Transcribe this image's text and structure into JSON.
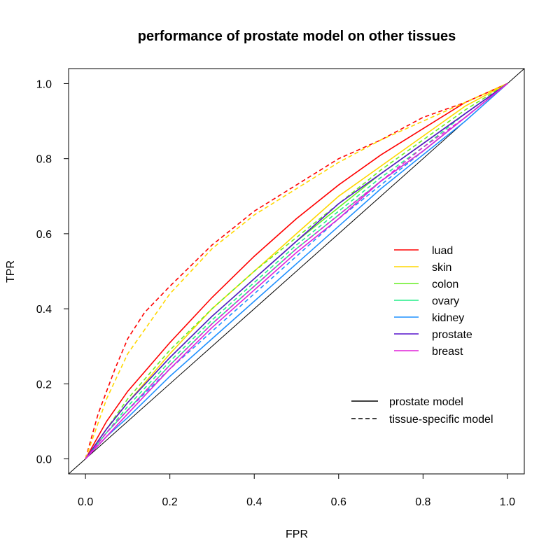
{
  "chart_data": {
    "type": "line",
    "title": "performance of prostate model on other tissues",
    "xlabel": "FPR",
    "ylabel": "TPR",
    "xlim": [
      -0.04,
      1.04
    ],
    "ylim": [
      -0.04,
      1.04
    ],
    "xticks": [
      "0.0",
      "0.2",
      "0.4",
      "0.6",
      "0.8",
      "1.0"
    ],
    "yticks": [
      "0.0",
      "0.2",
      "0.4",
      "0.6",
      "0.8",
      "1.0"
    ],
    "grid": false,
    "diagonal_reference": true,
    "legend_tissues": {
      "position": "right",
      "entries": [
        {
          "name": "luad",
          "color": "#ff0000"
        },
        {
          "name": "skin",
          "color": "#ffd700"
        },
        {
          "name": "colon",
          "color": "#66ee22"
        },
        {
          "name": "ovary",
          "color": "#22ee88"
        },
        {
          "name": "kidney",
          "color": "#1e90ff"
        },
        {
          "name": "prostate",
          "color": "#5511cc"
        },
        {
          "name": "breast",
          "color": "#e020d8"
        }
      ]
    },
    "legend_models": {
      "position": "bottom-right",
      "entries": [
        {
          "name": "prostate model",
          "dash": "solid"
        },
        {
          "name": "tissue-specific model",
          "dash": "dashed"
        }
      ]
    },
    "series": [
      {
        "name": "luad",
        "model": "prostate model",
        "color": "#ff0000",
        "dash": "solid",
        "x": [
          0,
          0.05,
          0.1,
          0.2,
          0.3,
          0.4,
          0.5,
          0.6,
          0.7,
          0.8,
          0.9,
          1.0
        ],
        "y": [
          0,
          0.1,
          0.18,
          0.31,
          0.43,
          0.54,
          0.64,
          0.73,
          0.81,
          0.88,
          0.95,
          1.0
        ]
      },
      {
        "name": "luad",
        "model": "tissue-specific model",
        "color": "#ff0000",
        "dash": "dashed",
        "x": [
          0,
          0.03,
          0.07,
          0.1,
          0.14,
          0.2,
          0.3,
          0.4,
          0.5,
          0.6,
          0.7,
          0.8,
          0.9,
          1.0
        ],
        "y": [
          0,
          0.12,
          0.24,
          0.32,
          0.39,
          0.46,
          0.57,
          0.66,
          0.73,
          0.8,
          0.85,
          0.91,
          0.95,
          1.0
        ]
      },
      {
        "name": "skin",
        "model": "prostate model",
        "color": "#ffd700",
        "dash": "solid",
        "x": [
          0,
          0.05,
          0.1,
          0.2,
          0.3,
          0.4,
          0.5,
          0.6,
          0.7,
          0.8,
          0.9,
          1.0
        ],
        "y": [
          0,
          0.08,
          0.15,
          0.28,
          0.4,
          0.5,
          0.6,
          0.7,
          0.78,
          0.86,
          0.94,
          1.0
        ]
      },
      {
        "name": "skin",
        "model": "tissue-specific model",
        "color": "#ffd700",
        "dash": "dashed",
        "x": [
          0,
          0.05,
          0.1,
          0.2,
          0.3,
          0.4,
          0.5,
          0.6,
          0.7,
          0.8,
          0.9,
          1.0
        ],
        "y": [
          0,
          0.16,
          0.28,
          0.44,
          0.56,
          0.65,
          0.72,
          0.79,
          0.85,
          0.9,
          0.95,
          1.0
        ]
      },
      {
        "name": "colon",
        "model": "prostate model",
        "color": "#66ee22",
        "dash": "solid",
        "x": [
          0,
          0.05,
          0.1,
          0.2,
          0.3,
          0.4,
          0.5,
          0.6,
          0.7,
          0.8,
          0.9,
          1.0
        ],
        "y": [
          0,
          0.08,
          0.15,
          0.27,
          0.38,
          0.48,
          0.58,
          0.67,
          0.76,
          0.84,
          0.92,
          1.0
        ]
      },
      {
        "name": "colon",
        "model": "tissue-specific model",
        "color": "#66ee22",
        "dash": "dashed",
        "x": [
          0,
          0.05,
          0.1,
          0.2,
          0.3,
          0.4,
          0.5,
          0.6,
          0.7,
          0.8,
          0.9,
          1.0
        ],
        "y": [
          0,
          0.08,
          0.16,
          0.29,
          0.4,
          0.5,
          0.59,
          0.68,
          0.77,
          0.85,
          0.93,
          1.0
        ]
      },
      {
        "name": "ovary",
        "model": "prostate model",
        "color": "#22ee88",
        "dash": "solid",
        "x": [
          0,
          0.05,
          0.1,
          0.2,
          0.3,
          0.4,
          0.5,
          0.6,
          0.7,
          0.8,
          0.9,
          1.0
        ],
        "y": [
          0,
          0.07,
          0.13,
          0.25,
          0.36,
          0.46,
          0.56,
          0.65,
          0.74,
          0.82,
          0.91,
          1.0
        ]
      },
      {
        "name": "ovary",
        "model": "tissue-specific model",
        "color": "#22ee88",
        "dash": "dashed",
        "x": [
          0,
          0.05,
          0.1,
          0.2,
          0.3,
          0.4,
          0.5,
          0.6,
          0.7,
          0.8,
          0.9,
          1.0
        ],
        "y": [
          0,
          0.07,
          0.14,
          0.26,
          0.37,
          0.47,
          0.57,
          0.66,
          0.75,
          0.83,
          0.92,
          1.0
        ]
      },
      {
        "name": "kidney",
        "model": "prostate model",
        "color": "#1e90ff",
        "dash": "solid",
        "x": [
          0,
          0.05,
          0.1,
          0.2,
          0.3,
          0.4,
          0.5,
          0.6,
          0.7,
          0.8,
          0.9,
          1.0
        ],
        "y": [
          0,
          0.06,
          0.11,
          0.22,
          0.32,
          0.42,
          0.52,
          0.62,
          0.72,
          0.81,
          0.9,
          1.0
        ]
      },
      {
        "name": "kidney",
        "model": "tissue-specific model",
        "color": "#1e90ff",
        "dash": "dashed",
        "x": [
          0,
          0.05,
          0.1,
          0.2,
          0.3,
          0.4,
          0.5,
          0.6,
          0.7,
          0.8,
          0.9,
          1.0
        ],
        "y": [
          0,
          0.07,
          0.13,
          0.24,
          0.34,
          0.44,
          0.54,
          0.64,
          0.73,
          0.82,
          0.91,
          1.0
        ]
      },
      {
        "name": "prostate",
        "model": "prostate model",
        "color": "#5511cc",
        "dash": "solid",
        "x": [
          0,
          0.05,
          0.1,
          0.2,
          0.3,
          0.4,
          0.5,
          0.6,
          0.7,
          0.8,
          0.9,
          1.0
        ],
        "y": [
          0,
          0.08,
          0.15,
          0.27,
          0.38,
          0.48,
          0.58,
          0.68,
          0.76,
          0.84,
          0.92,
          1.0
        ]
      },
      {
        "name": "breast",
        "model": "prostate model",
        "color": "#e020d8",
        "dash": "solid",
        "x": [
          0,
          0.05,
          0.1,
          0.2,
          0.3,
          0.4,
          0.5,
          0.6,
          0.7,
          0.8,
          0.9,
          1.0
        ],
        "y": [
          0,
          0.06,
          0.12,
          0.24,
          0.35,
          0.45,
          0.55,
          0.64,
          0.74,
          0.82,
          0.91,
          1.0
        ]
      },
      {
        "name": "breast",
        "model": "tissue-specific model",
        "color": "#e020d8",
        "dash": "dashed",
        "x": [
          0,
          0.05,
          0.1,
          0.2,
          0.3,
          0.4,
          0.5,
          0.6,
          0.7,
          0.8,
          0.9,
          1.0
        ],
        "y": [
          0,
          0.07,
          0.13,
          0.25,
          0.36,
          0.46,
          0.56,
          0.65,
          0.74,
          0.83,
          0.91,
          1.0
        ]
      }
    ]
  }
}
